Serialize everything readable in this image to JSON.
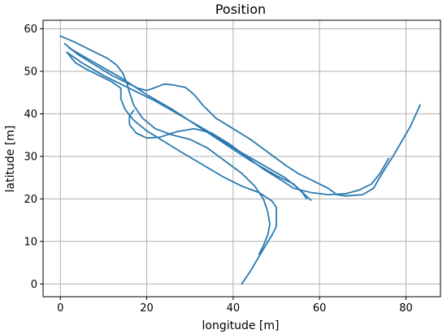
{
  "chart_data": {
    "type": "line",
    "title": "Position",
    "xlabel": "longitude [m]",
    "ylabel": "latitude [m]",
    "xlim": [
      -4,
      88
    ],
    "ylim": [
      -3,
      62
    ],
    "xticks": [
      0,
      20,
      40,
      60,
      80
    ],
    "yticks": [
      0,
      10,
      20,
      30,
      40,
      50,
      60
    ],
    "grid": true,
    "line_color": "#2a7ab0",
    "series": [
      {
        "values": [
          [
            42,
            0
          ],
          [
            44,
            3
          ],
          [
            46,
            6.5
          ],
          [
            47.5,
            9
          ],
          [
            49,
            11.5
          ],
          [
            50,
            13.5
          ],
          [
            50,
            16
          ],
          [
            50,
            18
          ],
          [
            49,
            19.5
          ],
          [
            46,
            21.5
          ],
          [
            42,
            23
          ],
          [
            38,
            25
          ],
          [
            33,
            28
          ],
          [
            28,
            31
          ],
          [
            24,
            33.5
          ],
          [
            20,
            36
          ],
          [
            17,
            38.5
          ],
          [
            15,
            41
          ],
          [
            14,
            43.5
          ],
          [
            14,
            46
          ],
          [
            12,
            47.5
          ],
          [
            9,
            49
          ],
          [
            6,
            50.5
          ],
          [
            3.5,
            52
          ],
          [
            1.5,
            54.5
          ]
        ]
      },
      {
        "values": [
          [
            0,
            58.3
          ],
          [
            3,
            57
          ],
          [
            7,
            55
          ],
          [
            11,
            53
          ],
          [
            13,
            51.5
          ],
          [
            14.5,
            49.5
          ],
          [
            15.5,
            47
          ],
          [
            16,
            45
          ],
          [
            17,
            42
          ],
          [
            19,
            39
          ],
          [
            22,
            36.5
          ],
          [
            26,
            35
          ],
          [
            30,
            34
          ],
          [
            34,
            32
          ],
          [
            38,
            29
          ],
          [
            42,
            26
          ],
          [
            45,
            23
          ],
          [
            47,
            20
          ],
          [
            48,
            17
          ],
          [
            48.5,
            14
          ],
          [
            48,
            11.5
          ],
          [
            47,
            9
          ],
          [
            46,
            7
          ]
        ]
      },
      {
        "values": [
          [
            1,
            56.5
          ],
          [
            4,
            54
          ],
          [
            8,
            51.5
          ],
          [
            12,
            49
          ],
          [
            16,
            47
          ],
          [
            18,
            46
          ],
          [
            20,
            45.5
          ],
          [
            22,
            46.2
          ],
          [
            24,
            47
          ],
          [
            26,
            46.8
          ],
          [
            29,
            46.2
          ],
          [
            31,
            44.5
          ],
          [
            33,
            42
          ],
          [
            36,
            39
          ],
          [
            40,
            36.5
          ],
          [
            44,
            34
          ],
          [
            48,
            31
          ],
          [
            52,
            28
          ],
          [
            55,
            26
          ],
          [
            59,
            24
          ],
          [
            62,
            22.5
          ],
          [
            64,
            21
          ],
          [
            66,
            20.7
          ],
          [
            70,
            21
          ],
          [
            72.5,
            22.5
          ],
          [
            74.5,
            26
          ],
          [
            77,
            30
          ],
          [
            79,
            33.5
          ],
          [
            81,
            37
          ],
          [
            83.3,
            42.1
          ]
        ]
      },
      {
        "values": [
          [
            17,
            40.8
          ],
          [
            16,
            39.5
          ],
          [
            16,
            37.5
          ],
          [
            17.5,
            35.5
          ],
          [
            20,
            34.3
          ],
          [
            23,
            34.5
          ],
          [
            27,
            35.8
          ],
          [
            31,
            36.5
          ],
          [
            35,
            35.5
          ],
          [
            39,
            33
          ],
          [
            43,
            30
          ],
          [
            47,
            27
          ],
          [
            51,
            24.5
          ],
          [
            54,
            22.5
          ],
          [
            58,
            21.5
          ],
          [
            62,
            21
          ],
          [
            66,
            21.2
          ],
          [
            69,
            22
          ],
          [
            72,
            23.5
          ],
          [
            74,
            26
          ],
          [
            76,
            29.5
          ]
        ]
      },
      {
        "values": [
          [
            1.5,
            54.5
          ],
          [
            5,
            52
          ],
          [
            10,
            49
          ],
          [
            16,
            46
          ],
          [
            22,
            43
          ],
          [
            28,
            39.5
          ],
          [
            34,
            36
          ],
          [
            40,
            32
          ],
          [
            46,
            28.5
          ],
          [
            52,
            25
          ],
          [
            55,
            22.5
          ],
          [
            58,
            19.7
          ]
        ]
      },
      {
        "values": [
          [
            2,
            55.5
          ],
          [
            8,
            52
          ],
          [
            14,
            48.5
          ],
          [
            20,
            44.5
          ],
          [
            26,
            41
          ],
          [
            32,
            37
          ],
          [
            38,
            33
          ],
          [
            44,
            29
          ],
          [
            50,
            25.5
          ],
          [
            54,
            23.5
          ],
          [
            56,
            21.5
          ],
          [
            57,
            20
          ]
        ]
      }
    ]
  }
}
